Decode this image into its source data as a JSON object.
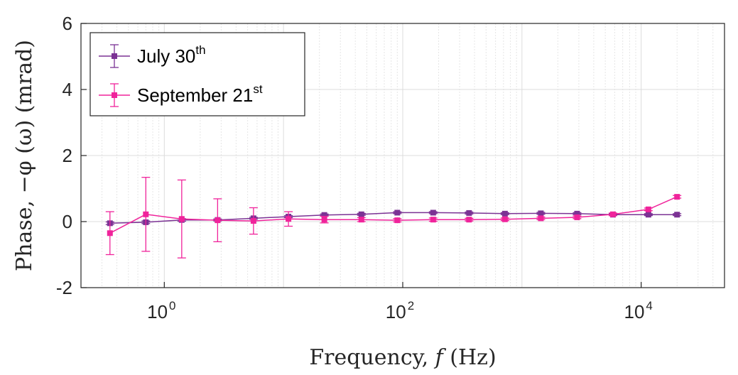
{
  "chart_data": {
    "type": "line",
    "xlabel": "Frequency, 𝑓 (Hz)",
    "ylabel": "Phase, −φ (ω) (mrad)",
    "x_scale": "log",
    "xlim": [
      0.2,
      50000
    ],
    "ylim": [
      -2,
      6
    ],
    "y_ticks": [
      "-2",
      "0",
      "2",
      "4",
      "6"
    ],
    "x_ticks": [
      {
        "value": 1,
        "base": "10",
        "exp": "0"
      },
      {
        "value": 100,
        "base": "10",
        "exp": "2"
      },
      {
        "value": 10000,
        "base": "10",
        "exp": "4"
      }
    ],
    "grid": true,
    "legend_position": "top-left",
    "series": [
      {
        "name_main": "July 30",
        "name_sup": "th",
        "color": "#7B3294",
        "x": [
          0.35,
          0.7,
          1.4,
          2.8,
          5.6,
          11,
          22,
          45,
          90,
          180,
          360,
          720,
          1440,
          2900,
          5800,
          11500,
          20000
        ],
        "y": [
          -0.05,
          -0.02,
          0.05,
          0.05,
          0.1,
          0.15,
          0.2,
          0.22,
          0.27,
          0.27,
          0.26,
          0.24,
          0.25,
          0.24,
          0.21,
          0.21,
          0.21
        ],
        "err": [
          0.04,
          0.04,
          0.04,
          0.03,
          0.03,
          0.03,
          0.03,
          0.03,
          0.03,
          0.03,
          0.03,
          0.03,
          0.03,
          0.03,
          0.03,
          0.03,
          0.03
        ]
      },
      {
        "name_main": "September 21",
        "name_sup": "st",
        "color": "#F0239B",
        "x": [
          0.35,
          0.7,
          1.4,
          2.8,
          5.6,
          11,
          22,
          45,
          90,
          180,
          360,
          720,
          1440,
          2900,
          5800,
          11500,
          20000
        ],
        "y": [
          -0.35,
          0.22,
          0.08,
          0.04,
          0.02,
          0.08,
          0.06,
          0.06,
          0.04,
          0.06,
          0.06,
          0.07,
          0.1,
          0.13,
          0.22,
          0.37,
          0.75
        ],
        "err": [
          0.65,
          1.12,
          1.18,
          0.65,
          0.4,
          0.22,
          0.1,
          0.06,
          0.05,
          0.05,
          0.04,
          0.04,
          0.04,
          0.04,
          0.04,
          0.04,
          0.04
        ]
      }
    ]
  }
}
